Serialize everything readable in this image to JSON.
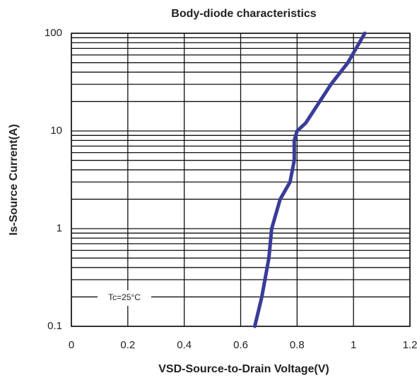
{
  "chart_data": {
    "type": "line",
    "title": "Body-diode characteristics",
    "x_label": "VSD-Source-to-Drain Voltage(V)",
    "y_label": "Is-Source Current(A)",
    "annotation": "Tc=25°C",
    "log_y": true,
    "grid": true,
    "minor_grid": true,
    "xlim": [
      0,
      1.2
    ],
    "xticks": [
      0,
      0.2,
      0.4,
      0.6,
      0.8,
      1,
      1.2
    ],
    "ylim": [
      0.1,
      100
    ],
    "yticks": [
      0.1,
      1,
      10,
      100
    ],
    "series": [
      {
        "color": "#393c98",
        "x": [
          0.65,
          0.675,
          0.7,
          0.71,
          0.74,
          0.775,
          0.79,
          0.79,
          0.8,
          0.83,
          0.92,
          0.98,
          1.04
        ],
        "values": [
          0.1,
          0.2,
          0.5,
          1,
          2,
          3,
          5,
          8,
          10,
          12,
          30,
          50,
          100
        ]
      }
    ]
  }
}
